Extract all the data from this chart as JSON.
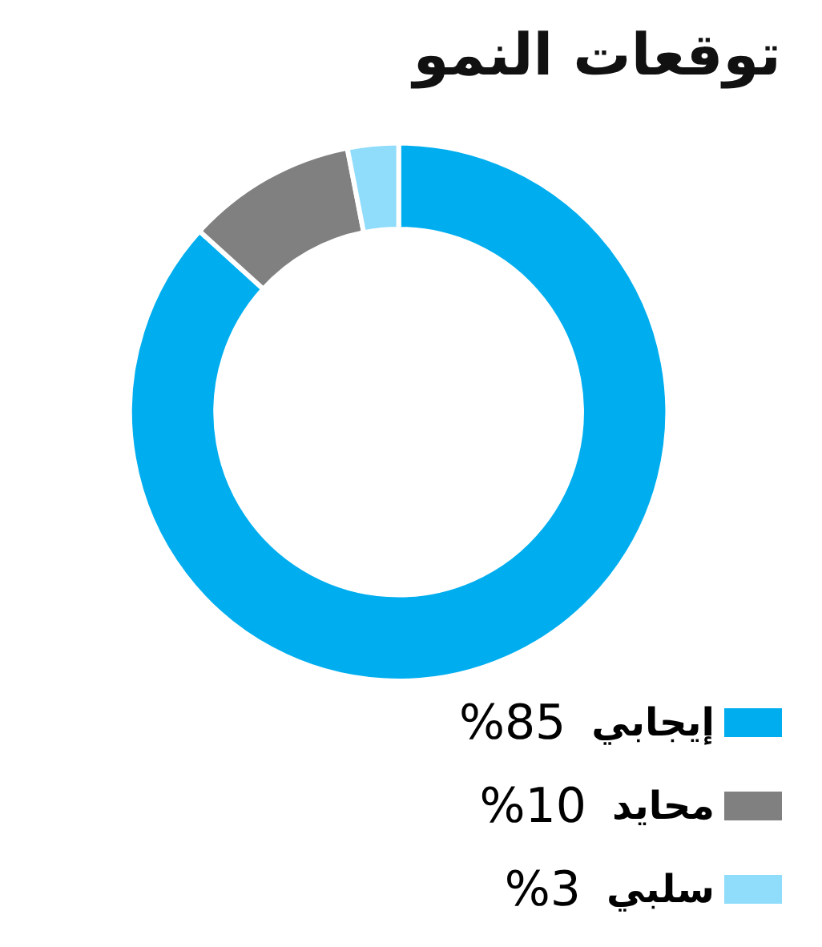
{
  "chart_data": {
    "type": "donut",
    "title": "توقعات النمو",
    "categories": [
      "إيجابي",
      "محايد",
      "سلبي"
    ],
    "values": [
      85,
      10,
      3
    ],
    "colors": [
      "#00aeef",
      "#808080",
      "#8fdcfb"
    ],
    "value_labels": [
      "%85",
      "%10",
      "%3"
    ],
    "legend": "bottom right"
  }
}
